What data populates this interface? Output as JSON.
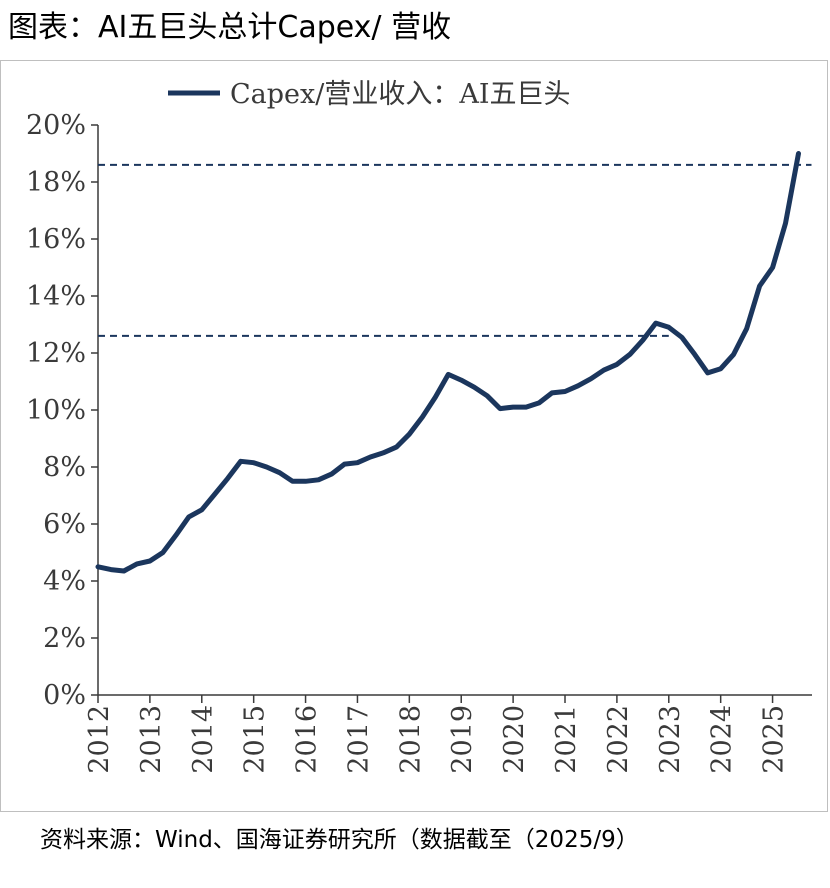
{
  "title": "图表：AI五巨头总计Capex/ 营收",
  "source": "资料来源：Wind、国海证券研究所（数据截至（2025/9）",
  "colors": {
    "series": "#1b365d",
    "axis": "#3a3a3a",
    "frame": "#bfbfbf"
  },
  "chart_data": {
    "type": "line",
    "title": "",
    "xlabel": "",
    "ylabel": "",
    "ylim": [
      0,
      20
    ],
    "y_ticks": [
      "0%",
      "2%",
      "4%",
      "6%",
      "8%",
      "10%",
      "12%",
      "14%",
      "16%",
      "18%",
      "20%"
    ],
    "x_ticks": [
      "2012",
      "2013",
      "2014",
      "2015",
      "2016",
      "2017",
      "2018",
      "2019",
      "2020",
      "2021",
      "2022",
      "2023",
      "2024",
      "2025"
    ],
    "legend": {
      "placement": "top-center",
      "entries": [
        "Capex/营业收入：AI五巨头"
      ]
    },
    "grid": false,
    "reference_lines": [
      {
        "y": 18.6,
        "style": "dashed",
        "x_end": "2025-Q4"
      },
      {
        "y": 12.6,
        "style": "dashed",
        "x_end": "2023-Q1"
      }
    ],
    "series": [
      {
        "name": "Capex/营业收入：AI五巨头",
        "x": [
          "2012-Q1",
          "2012-Q2",
          "2012-Q3",
          "2012-Q4",
          "2013-Q1",
          "2013-Q2",
          "2013-Q3",
          "2013-Q4",
          "2014-Q1",
          "2014-Q2",
          "2014-Q3",
          "2014-Q4",
          "2015-Q1",
          "2015-Q2",
          "2015-Q3",
          "2015-Q4",
          "2016-Q1",
          "2016-Q2",
          "2016-Q3",
          "2016-Q4",
          "2017-Q1",
          "2017-Q2",
          "2017-Q3",
          "2017-Q4",
          "2018-Q1",
          "2018-Q2",
          "2018-Q3",
          "2018-Q4",
          "2019-Q1",
          "2019-Q2",
          "2019-Q3",
          "2019-Q4",
          "2020-Q1",
          "2020-Q2",
          "2020-Q3",
          "2020-Q4",
          "2021-Q1",
          "2021-Q2",
          "2021-Q3",
          "2021-Q4",
          "2022-Q1",
          "2022-Q2",
          "2022-Q3",
          "2022-Q4",
          "2023-Q1",
          "2023-Q2",
          "2023-Q3",
          "2023-Q4",
          "2024-Q1",
          "2024-Q2",
          "2024-Q3",
          "2024-Q4",
          "2025-Q1",
          "2025-Q2",
          "2025-Q3"
        ],
        "values": [
          4.5,
          4.4,
          4.35,
          4.6,
          4.7,
          5.0,
          5.6,
          6.25,
          6.5,
          7.05,
          7.6,
          8.2,
          8.15,
          8.0,
          7.8,
          7.5,
          7.5,
          7.55,
          7.75,
          8.1,
          8.15,
          8.35,
          8.5,
          8.7,
          9.15,
          9.75,
          10.45,
          11.25,
          11.05,
          10.8,
          10.5,
          10.05,
          10.1,
          10.1,
          10.25,
          10.6,
          10.65,
          10.85,
          11.1,
          11.4,
          11.6,
          11.95,
          12.45,
          13.05,
          12.9,
          12.55,
          11.95,
          11.3,
          11.45,
          11.95,
          12.85,
          14.35,
          15.0,
          16.55,
          19.0
        ]
      }
    ]
  }
}
